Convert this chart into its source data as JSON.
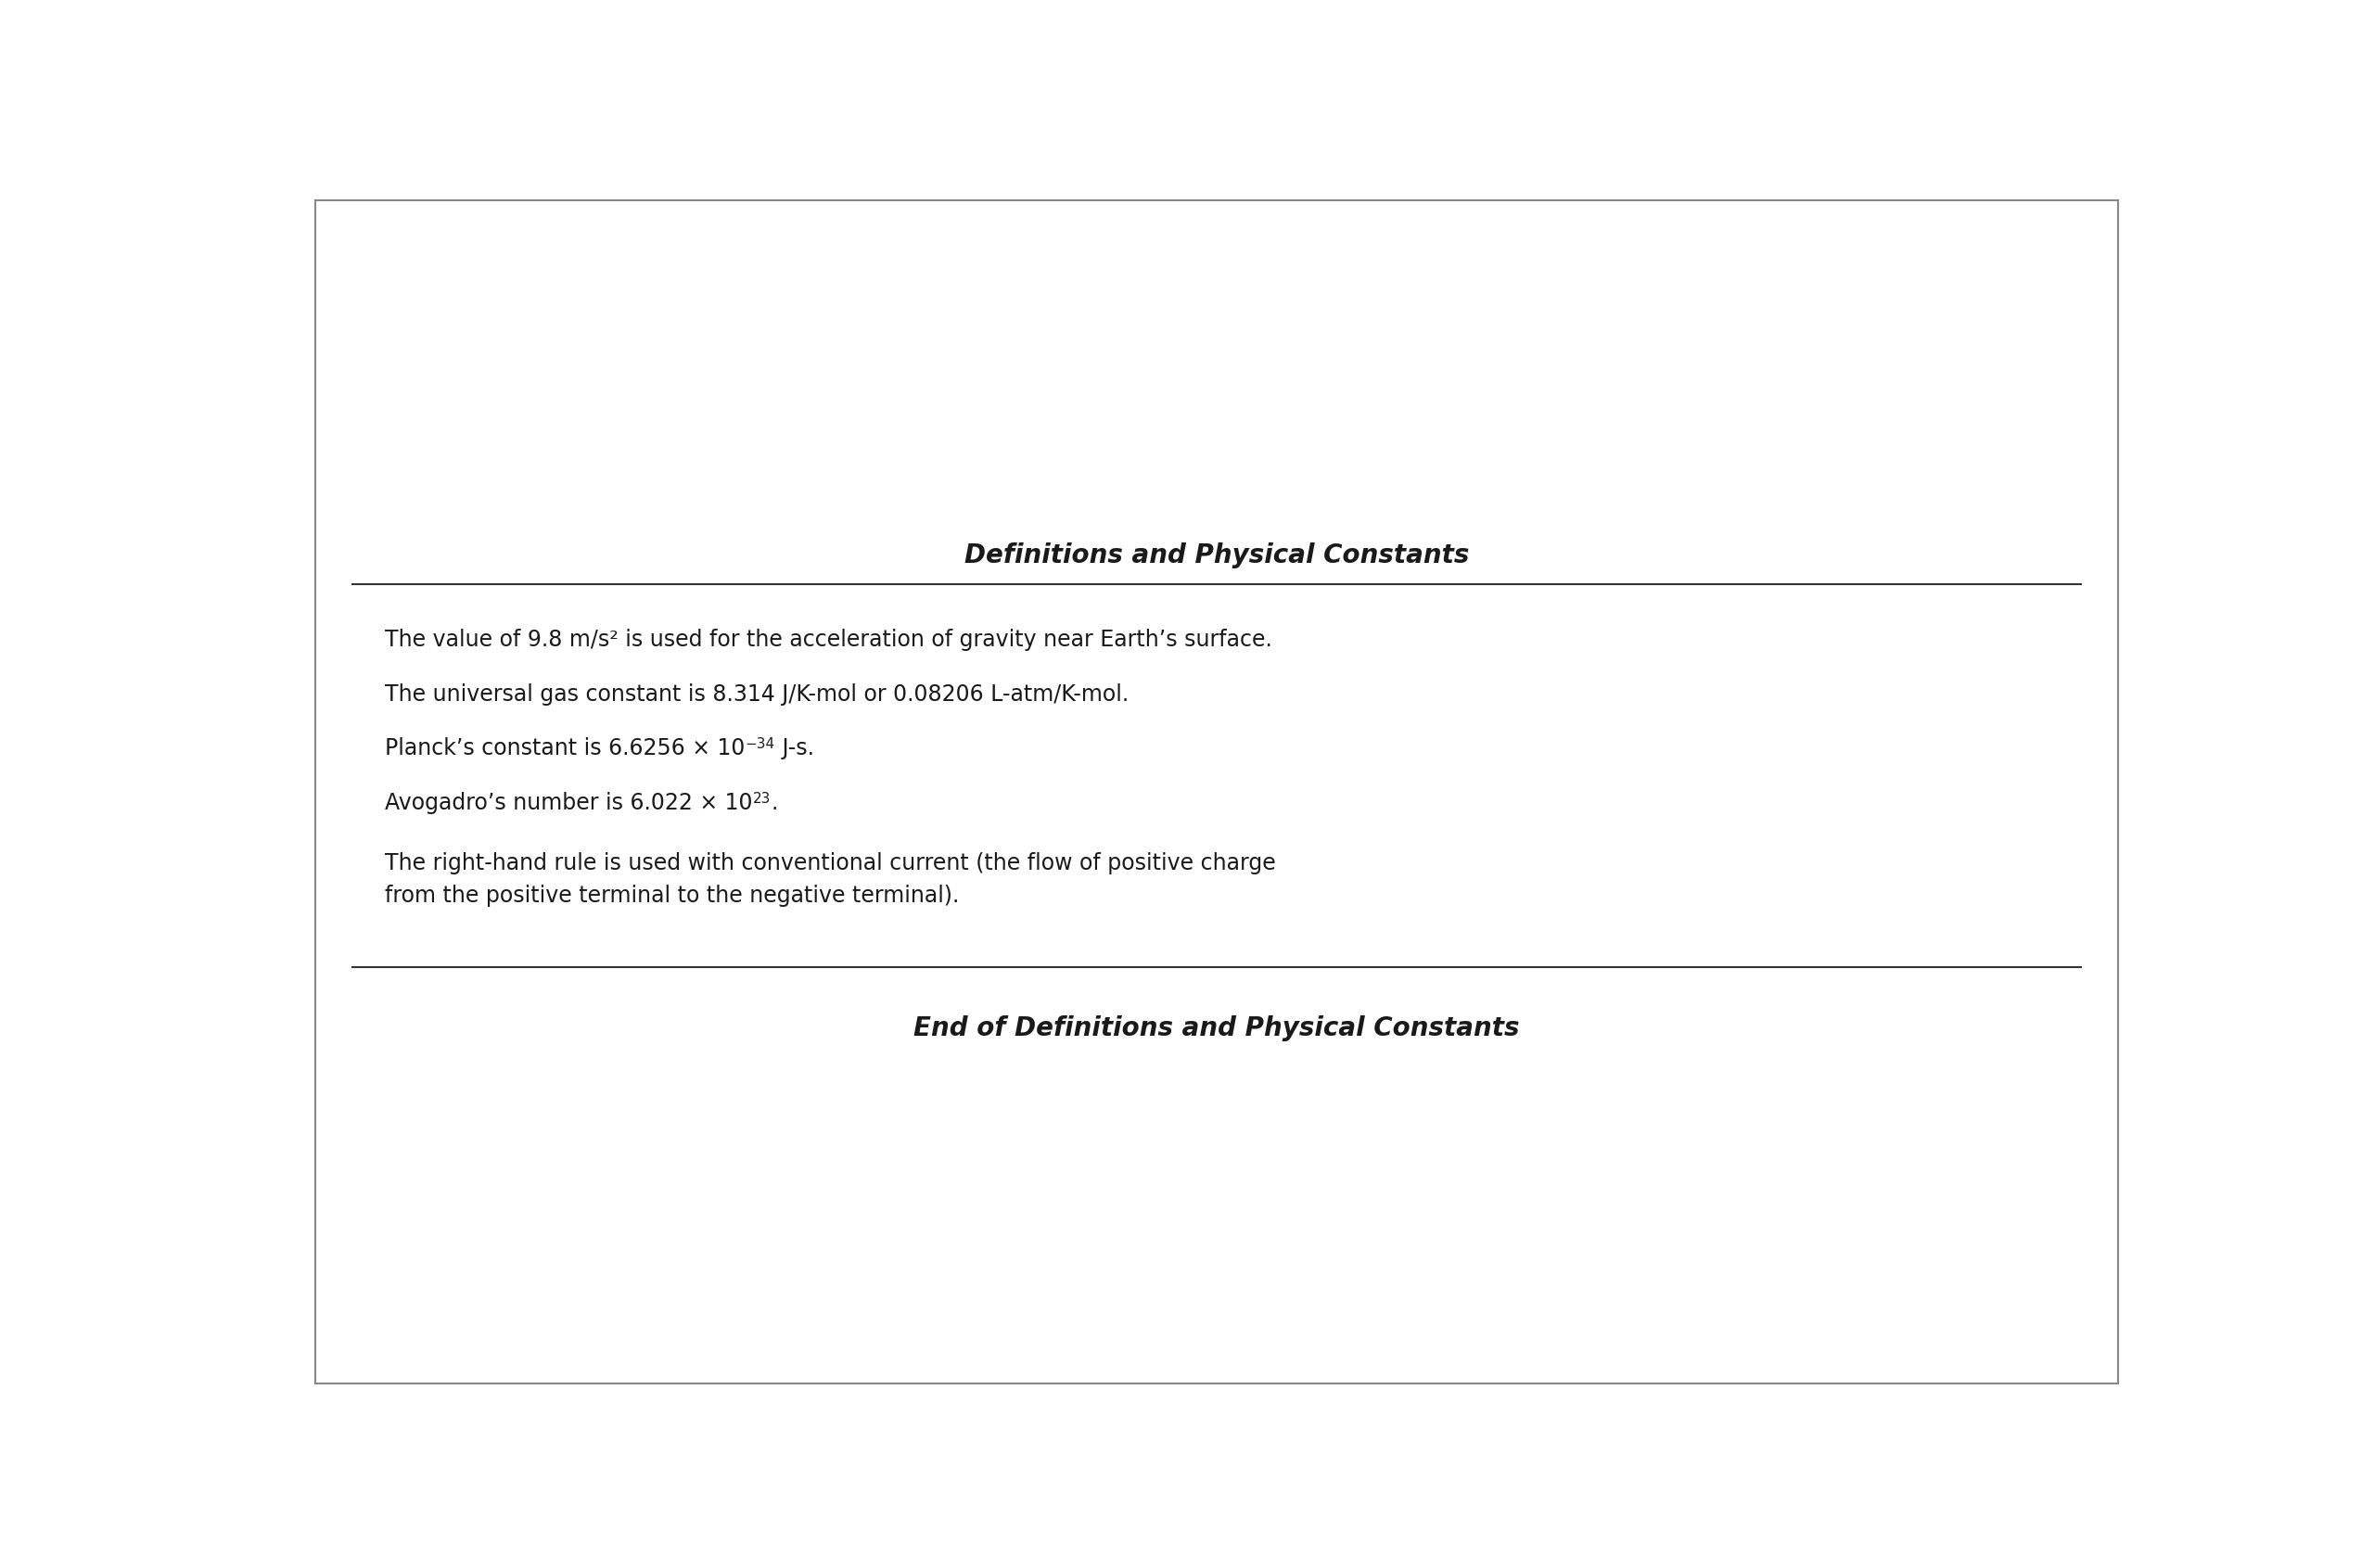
{
  "title": "Definitions and Physical Constants",
  "footer": "End of Definitions and Physical Constants",
  "background_color": "#ffffff",
  "border_color": "#888888",
  "title_fontsize": 20,
  "body_fontsize": 17,
  "sup_fontsize": 11,
  "line_color": "#333333",
  "text_color": "#1a1a1a",
  "line1": "The value of 9.8 m/s² is used for the acceleration of gravity near Earth’s surface.",
  "line2": "The universal gas constant is 8.314 J/K-mol or 0.08206 L-atm/K-mol.",
  "line3_prefix": "Planck’s constant is 6.6256 × 10",
  "line3_sup": "−34",
  "line3_suffix": " J-s.",
  "line4_prefix": "Avogadro’s number is 6.022 × 10",
  "line4_sup": "23",
  "line4_suffix": ".",
  "line5": "The right-hand rule is used with conventional current (the flow of positive charge\nfrom the positive terminal to the negative terminal)."
}
